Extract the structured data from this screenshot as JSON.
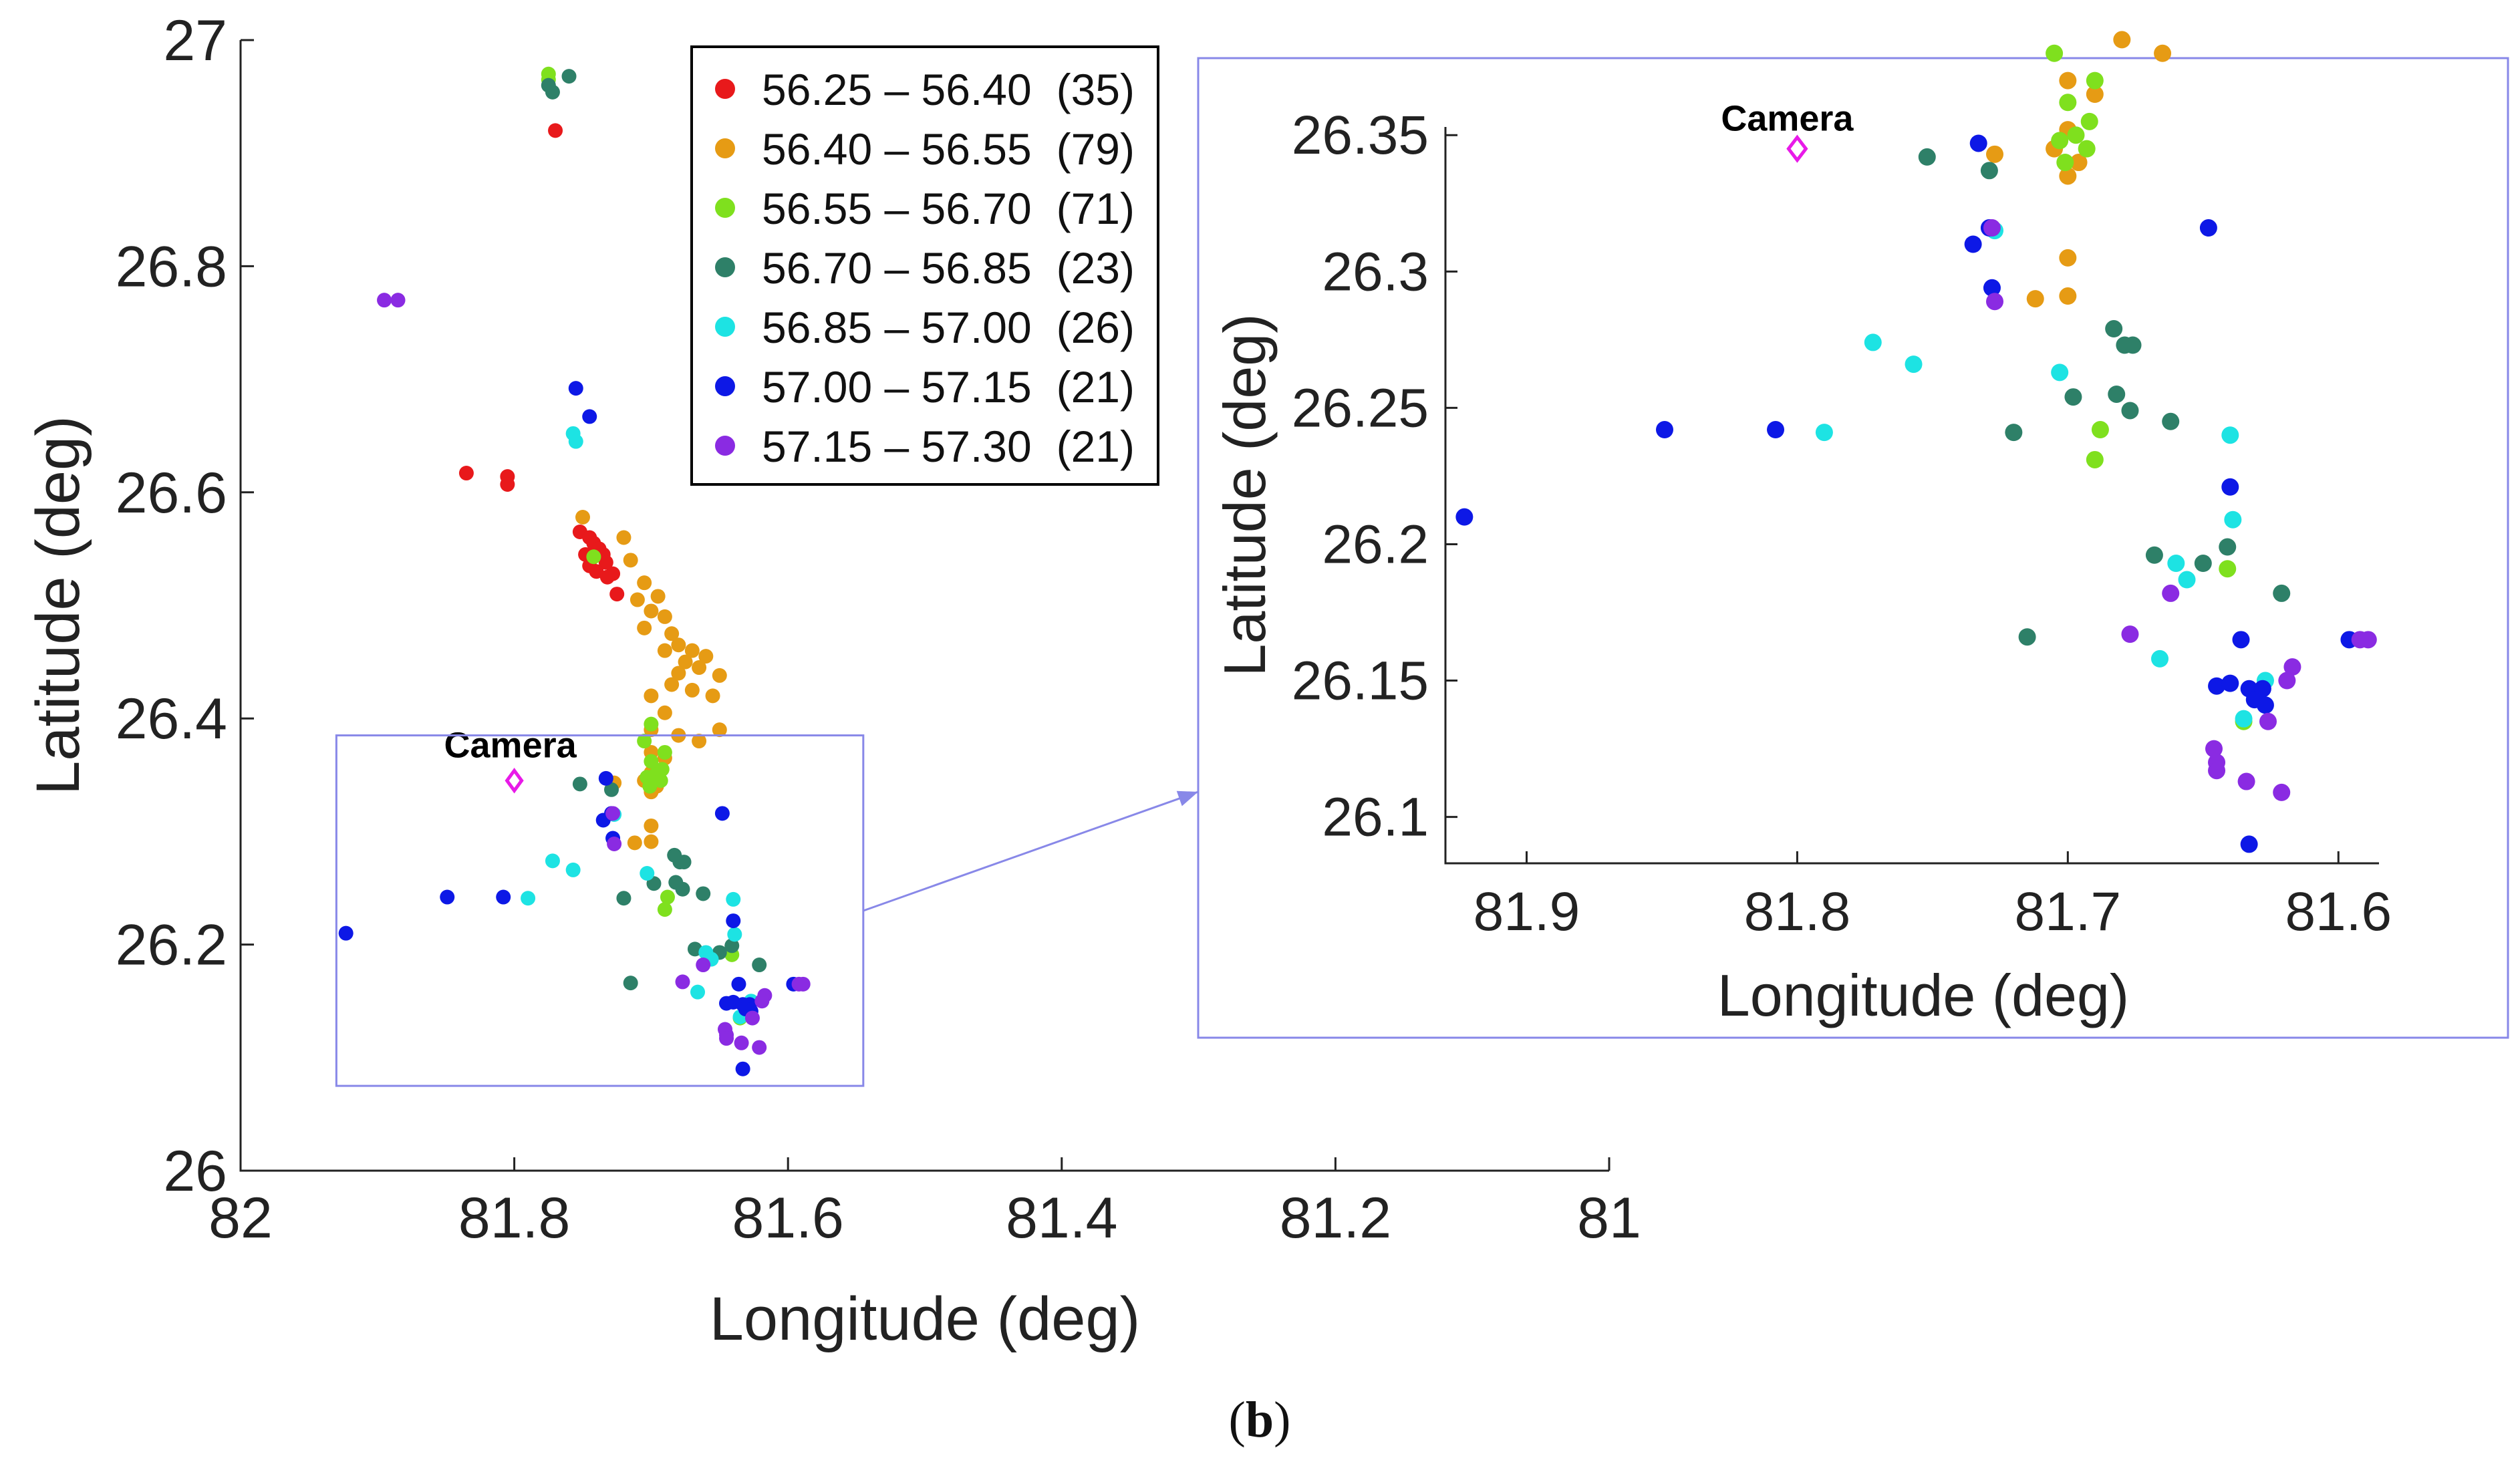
{
  "caption": {
    "open": "(",
    "letter": "b",
    "close": ")"
  },
  "legend": {
    "entries": [
      {
        "range": "56.25 – 56.40",
        "count": "(35)",
        "color": "#e8191b"
      },
      {
        "range": "56.40 – 56.55",
        "count": "(79)",
        "color": "#e69b14"
      },
      {
        "range": "56.55 – 56.70",
        "count": "(71)",
        "color": "#7fe01e"
      },
      {
        "range": "56.70 – 56.85",
        "count": "(23)",
        "color": "#2e8068"
      },
      {
        "range": "56.85 – 57.00",
        "count": "(26)",
        "color": "#1de3e3"
      },
      {
        "range": "57.00 – 57.15",
        "count": "(21)",
        "color": "#0d18e6"
      },
      {
        "range": "57.15 – 57.30",
        "count": "(21)",
        "color": "#8a2be2"
      }
    ]
  },
  "camera": {
    "label": "Camera",
    "color": "#e81ae8",
    "lon": 81.8,
    "lat": 26.345
  },
  "zoom_box_color": "#8888e8",
  "chart_data": [
    {
      "type": "scatter",
      "name": "overview",
      "xlabel": "Longitude (deg)",
      "ylabel": "Latitude (deg)",
      "xlim": [
        82,
        81
      ],
      "ylim": [
        26,
        27
      ],
      "xticks": [
        82,
        81.8,
        81.6,
        81.4,
        81.2,
        81
      ],
      "xtick_labels": [
        "82",
        "81.8",
        "81.6",
        "81.4",
        "81.2",
        "81"
      ],
      "yticks": [
        26,
        26.2,
        26.4,
        26.6,
        26.8,
        27
      ],
      "ytick_labels": [
        "26",
        "26.2",
        "26.4",
        "26.6",
        "26.8",
        "27"
      ],
      "zoom_region": {
        "lon": [
          81.93,
          81.545
        ],
        "lat": [
          26.075,
          26.385
        ]
      },
      "series": [
        {
          "name": "56.25 – 56.40",
          "color": "#e8191b",
          "points": [
            [
              81.77,
              26.92
            ],
            [
              81.835,
              26.617
            ],
            [
              81.805,
              26.614
            ],
            [
              81.805,
              26.607
            ],
            [
              81.752,
              26.565
            ],
            [
              81.745,
              26.56
            ],
            [
              81.742,
              26.555
            ],
            [
              81.738,
              26.55
            ],
            [
              81.735,
              26.545
            ],
            [
              81.733,
              26.538
            ],
            [
              81.748,
              26.545
            ],
            [
              81.745,
              26.535
            ],
            [
              81.728,
              26.528
            ],
            [
              81.74,
              26.53
            ],
            [
              81.732,
              26.525
            ],
            [
              81.725,
              26.51
            ]
          ]
        },
        {
          "name": "56.40 – 56.55",
          "color": "#e69b14",
          "points": [
            [
              81.75,
              26.578
            ],
            [
              81.72,
              26.56
            ],
            [
              81.715,
              26.54
            ],
            [
              81.705,
              26.52
            ],
            [
              81.71,
              26.505
            ],
            [
              81.695,
              26.508
            ],
            [
              81.7,
              26.495
            ],
            [
              81.69,
              26.49
            ],
            [
              81.705,
              26.48
            ],
            [
              81.685,
              26.475
            ],
            [
              81.68,
              26.465
            ],
            [
              81.69,
              26.46
            ],
            [
              81.67,
              26.46
            ],
            [
              81.66,
              26.455
            ],
            [
              81.675,
              26.45
            ],
            [
              81.665,
              26.445
            ],
            [
              81.68,
              26.44
            ],
            [
              81.65,
              26.438
            ],
            [
              81.685,
              26.43
            ],
            [
              81.67,
              26.425
            ],
            [
              81.655,
              26.42
            ],
            [
              81.7,
              26.42
            ],
            [
              81.69,
              26.405
            ],
            [
              81.65,
              26.39
            ],
            [
              81.7,
              26.39
            ],
            [
              81.68,
              26.385
            ],
            [
              81.665,
              26.38
            ],
            [
              81.7,
              26.37
            ],
            [
              81.69,
              26.365
            ],
            [
              81.7,
              26.352
            ],
            [
              81.705,
              26.345
            ],
            [
              81.696,
              26.34
            ],
            [
              81.7,
              26.335
            ],
            [
              81.727,
              26.343
            ],
            [
              81.7,
              26.305
            ],
            [
              81.712,
              26.29
            ],
            [
              81.7,
              26.291
            ]
          ]
        },
        {
          "name": "56.55 – 56.70",
          "color": "#7fe01e",
          "points": [
            [
              81.775,
              26.97
            ],
            [
              81.775,
              26.965
            ],
            [
              81.742,
              26.543
            ],
            [
              81.7,
              26.395
            ],
            [
              81.705,
              26.38
            ],
            [
              81.69,
              26.37
            ],
            [
              81.7,
              26.362
            ],
            [
              81.692,
              26.355
            ],
            [
              81.697,
              26.35
            ],
            [
              81.703,
              26.348
            ],
            [
              81.693,
              26.345
            ],
            [
              81.701,
              26.34
            ],
            [
              81.688,
              26.242
            ],
            [
              81.69,
              26.231
            ],
            [
              81.641,
              26.191
            ],
            [
              81.635,
              26.135
            ]
          ]
        },
        {
          "name": "56.70 – 56.85",
          "color": "#2e8068",
          "points": [
            [
              81.76,
              26.968
            ],
            [
              81.775,
              26.96
            ],
            [
              81.772,
              26.954
            ],
            [
              81.752,
              26.342
            ],
            [
              81.729,
              26.337
            ],
            [
              81.683,
              26.279
            ],
            [
              81.679,
              26.273
            ],
            [
              81.676,
              26.273
            ],
            [
              81.682,
              26.255
            ],
            [
              81.677,
              26.249
            ],
            [
              81.698,
              26.254
            ],
            [
              81.72,
              26.241
            ],
            [
              81.662,
              26.245
            ],
            [
              81.668,
              26.196
            ],
            [
              81.65,
              26.193
            ],
            [
              81.641,
              26.199
            ],
            [
              81.621,
              26.182
            ],
            [
              81.715,
              26.166
            ]
          ]
        },
        {
          "name": "56.85 – 57.00",
          "color": "#1de3e3",
          "points": [
            [
              81.757,
              26.652
            ],
            [
              81.755,
              26.645
            ],
            [
              81.772,
              26.274
            ],
            [
              81.757,
              26.266
            ],
            [
              81.703,
              26.263
            ],
            [
              81.79,
              26.241
            ],
            [
              81.64,
              26.24
            ],
            [
              81.639,
              26.209
            ],
            [
              81.66,
              26.193
            ],
            [
              81.656,
              26.187
            ],
            [
              81.666,
              26.158
            ],
            [
              81.627,
              26.15
            ],
            [
              81.635,
              26.136
            ],
            [
              81.727,
              26.315
            ]
          ]
        },
        {
          "name": "57.00 – 57.15",
          "color": "#0d18e6",
          "points": [
            [
              81.755,
              26.692
            ],
            [
              81.745,
              26.667
            ],
            [
              81.733,
              26.347
            ],
            [
              81.648,
              26.316
            ],
            [
              81.735,
              26.31
            ],
            [
              81.728,
              26.294
            ],
            [
              81.849,
              26.242
            ],
            [
              81.808,
              26.242
            ],
            [
              81.64,
              26.221
            ],
            [
              81.923,
              26.21
            ],
            [
              81.636,
              26.165
            ],
            [
              81.596,
              26.165
            ],
            [
              81.645,
              26.148
            ],
            [
              81.64,
              26.149
            ],
            [
              81.633,
              26.147
            ],
            [
              81.628,
              26.147
            ],
            [
              81.631,
              26.143
            ],
            [
              81.627,
              26.141
            ],
            [
              81.633,
              26.09
            ],
            [
              81.729,
              26.316
            ]
          ]
        },
        {
          "name": "57.15 – 57.30",
          "color": "#8a2be2",
          "points": [
            [
              81.895,
              26.77
            ],
            [
              81.885,
              26.77
            ],
            [
              81.728,
              26.316
            ],
            [
              81.727,
              26.289
            ],
            [
              81.662,
              26.182
            ],
            [
              81.677,
              26.167
            ],
            [
              81.589,
              26.165
            ],
            [
              81.592,
              26.165
            ],
            [
              81.617,
              26.155
            ],
            [
              81.619,
              26.15
            ],
            [
              81.626,
              26.135
            ],
            [
              81.646,
              26.125
            ],
            [
              81.645,
              26.12
            ],
            [
              81.645,
              26.117
            ],
            [
              81.634,
              26.113
            ],
            [
              81.621,
              26.109
            ]
          ]
        }
      ]
    },
    {
      "type": "scatter",
      "name": "zoom",
      "xlabel": "Longitude (deg)",
      "ylabel": "Latitude (deg)",
      "xlim": [
        81.93,
        81.585
      ],
      "ylim": [
        26.083,
        26.353
      ],
      "xticks": [
        81.9,
        81.8,
        81.7,
        81.6
      ],
      "xtick_labels": [
        "81.9",
        "81.8",
        "81.7",
        "81.6"
      ],
      "yticks": [
        26.1,
        26.15,
        26.2,
        26.25,
        26.3,
        26.35
      ],
      "ytick_labels": [
        "26.1",
        "26.15",
        "26.2",
        "26.25",
        "26.3",
        "26.35"
      ],
      "region": {
        "lon": [
          81.93,
          81.545
        ],
        "lat": [
          26.075,
          26.385
        ]
      }
    }
  ]
}
